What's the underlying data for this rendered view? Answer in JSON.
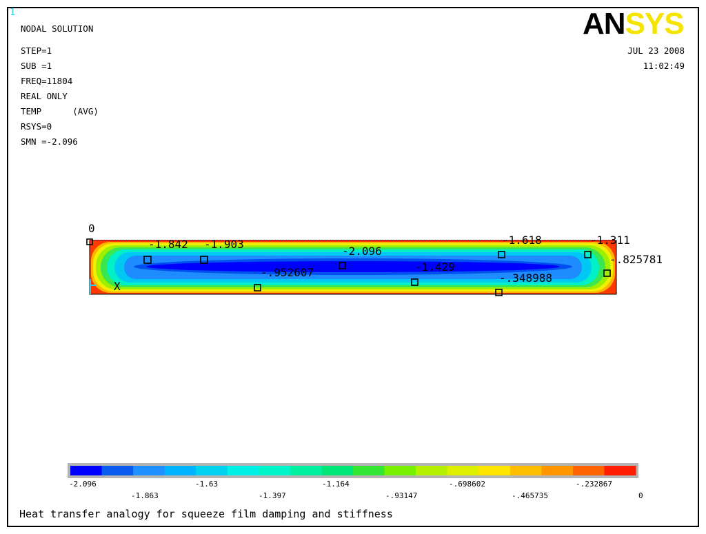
{
  "window_number": "1",
  "logo": {
    "part1": "AN",
    "part2": "SYS"
  },
  "info_lines": [
    "NODAL SOLUTION",
    "STEP=1",
    "SUB =1",
    "FREQ=11804",
    "REAL ONLY",
    "TEMP      (AVG)",
    "RSYS=0",
    "SMN =-2.096"
  ],
  "date": "JUL 23 2008",
  "time": "11:02:49",
  "axis_label": "X",
  "origin_label": "0",
  "node_labels": [
    "-1.842",
    "-1.903",
    "-2.096",
    "-.952607",
    "-1.429",
    "-1.618",
    "-1.311",
    "-.825781",
    "-.348988"
  ],
  "colorbar": {
    "colors": [
      "#0000ff",
      "#0a5cf0",
      "#1e90ff",
      "#00b4ff",
      "#00d2f0",
      "#00f0e6",
      "#00f5c8",
      "#00f0a0",
      "#00e678",
      "#32e632",
      "#78f000",
      "#b4f000",
      "#dcf000",
      "#ffe600",
      "#ffbe00",
      "#ff9600",
      "#ff6400",
      "#ff1e00"
    ],
    "labels_top": [
      "-2.096",
      "-1.63",
      "-1.164",
      "-.698602",
      "-.232867"
    ],
    "labels_bottom": [
      "-1.863",
      "-1.397",
      "-.93147",
      "-.465735",
      "0"
    ]
  },
  "caption": "Heat transfer analogy for squeeze film damping and stiffness"
}
